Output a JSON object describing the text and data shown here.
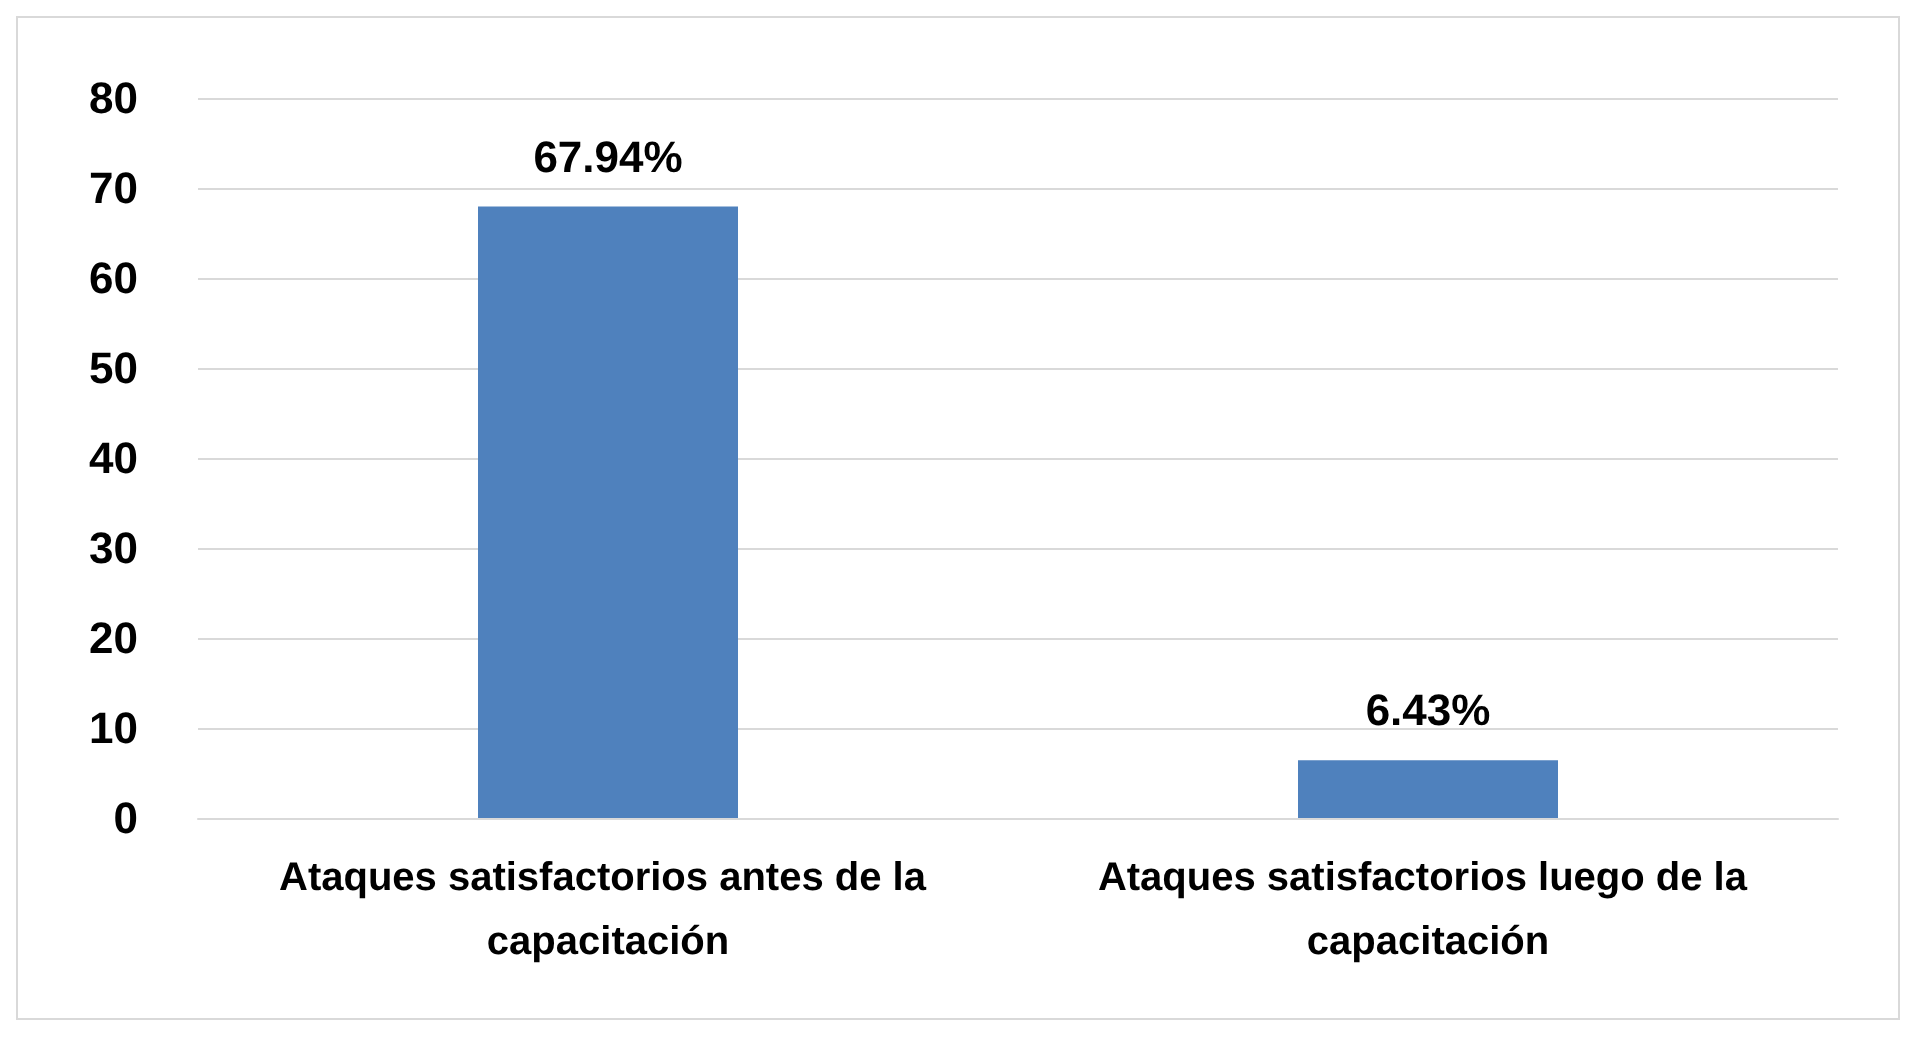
{
  "chart_data": {
    "type": "bar",
    "categories": [
      "Ataques satisfactorios antes de la capacitación",
      "Ataques satisfactorios luego de la capacitación"
    ],
    "values": [
      67.94,
      6.43
    ],
    "value_labels": [
      "67.94%",
      "6.43%"
    ],
    "color": "#4f81bd",
    "ylim": [
      0,
      80
    ],
    "yticks": [
      0,
      10,
      20,
      30,
      40,
      50,
      60,
      70,
      80
    ],
    "grid": "y"
  }
}
